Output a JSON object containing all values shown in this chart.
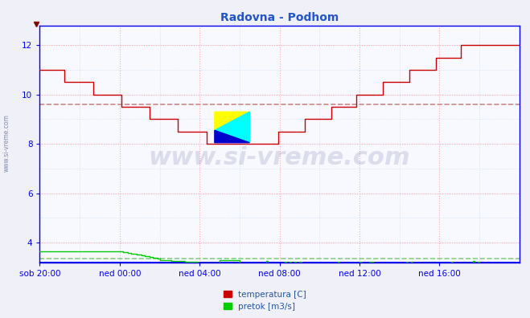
{
  "title": "Radovna - Podhom",
  "title_color": "#2255cc",
  "bg_color": "#f0f0f8",
  "plot_bg_color": "#f8f8ff",
  "grid_color_major": "#ffaaaa",
  "grid_color_minor": "#ccddee",
  "xlabel_color": "#2255aa",
  "ylabel_color": "#2255aa",
  "axis_color": "#0000ee",
  "tick_labels": [
    "sob 20:00",
    "ned 00:00",
    "ned 04:00",
    "ned 08:00",
    "ned 12:00",
    "ned 16:00"
  ],
  "yticks": [
    4,
    6,
    8,
    10,
    12
  ],
  "ylim": [
    3.2,
    12.8
  ],
  "xlim": [
    0,
    288
  ],
  "avg_temp": 9.6,
  "avg_flow": 3.35,
  "temp_color": "#cc0000",
  "flow_color": "#00cc00",
  "avg_temp_color": "#cc8888",
  "avg_flow_color": "#88cc88",
  "watermark_color": "#1a2a6e",
  "watermark_alpha": 0.13,
  "legend_temp_label": "temperatura [C]",
  "legend_flow_label": "pretok [m3/s]",
  "n_points": 289,
  "tick_positions": [
    0,
    48,
    96,
    144,
    192,
    240
  ]
}
